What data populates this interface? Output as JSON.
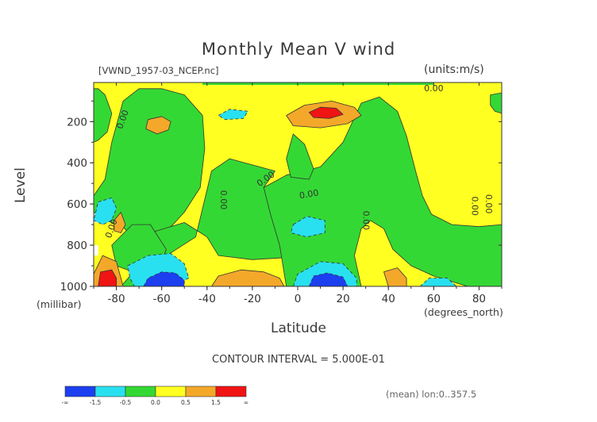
{
  "colors": {
    "blue": "#1c3ff0",
    "cyan": "#28e0f0",
    "green": "#34d834",
    "yellow": "#ffff22",
    "orange": "#f4a82a",
    "red": "#f01414",
    "line": "#333333"
  },
  "chart_data": {
    "type": "contour",
    "title": "Monthly Mean V wind",
    "file_label": "[VWND_1957-03_NCEP.nc]",
    "units_label": "(units:m/s)",
    "xlabel": "Latitude",
    "x_unit": "(degrees_north)",
    "ylabel": "Level",
    "y_unit": "(millibar)",
    "xlim": [
      -90,
      90
    ],
    "ylim": [
      1000,
      10
    ],
    "x_ticks": [
      -80,
      -60,
      -40,
      -20,
      0,
      20,
      40,
      60,
      80
    ],
    "y_ticks": [
      200,
      400,
      600,
      800,
      1000
    ],
    "contour_interval_label": "CONTOUR INTERVAL = 5.000E-01",
    "mean_note": "(mean) lon:0..357.5",
    "contour_label": "0.00",
    "colorbar": {
      "colors": [
        "#1c3ff0",
        "#28e0f0",
        "#34d834",
        "#ffff22",
        "#f4a82a",
        "#f01414"
      ],
      "tick_labels": [
        "-∞",
        "-1.5",
        "-0.5",
        "0.0",
        "0.5",
        "1.5",
        "∞"
      ]
    },
    "regions": [
      {
        "level": "green",
        "points": [
          [
            -90,
            560
          ],
          [
            -85,
            480
          ],
          [
            -82,
            300
          ],
          [
            -77,
            100
          ],
          [
            -70,
            40
          ],
          [
            -60,
            40
          ],
          [
            -50,
            70
          ],
          [
            -42,
            170
          ],
          [
            -41,
            330
          ],
          [
            -43,
            520
          ],
          [
            -50,
            640
          ],
          [
            -55,
            700
          ],
          [
            -62,
            770
          ],
          [
            -72,
            770
          ],
          [
            -78,
            700
          ],
          [
            -85,
            680
          ],
          [
            -90,
            640
          ]
        ]
      },
      {
        "level": "green",
        "points": [
          [
            -65,
            740
          ],
          [
            -50,
            690
          ],
          [
            -40,
            760
          ],
          [
            -35,
            850
          ],
          [
            -20,
            870
          ],
          [
            -5,
            860
          ],
          [
            -4,
            780
          ],
          [
            -3,
            600
          ],
          [
            -15,
            520
          ],
          [
            -10,
            440
          ],
          [
            -30,
            380
          ],
          [
            -38,
            440
          ],
          [
            -45,
            760
          ],
          [
            -62,
            880
          ],
          [
            -74,
            950
          ],
          [
            -78,
            1000
          ],
          [
            -60,
            1000
          ]
        ]
      },
      {
        "level": "green",
        "points": [
          [
            -5,
            1000
          ],
          [
            -8,
            800
          ],
          [
            -12,
            650
          ],
          [
            -15,
            520
          ],
          [
            -5,
            460
          ],
          [
            10,
            420
          ],
          [
            20,
            300
          ],
          [
            28,
            110
          ],
          [
            36,
            80
          ],
          [
            44,
            150
          ],
          [
            48,
            270
          ],
          [
            52,
            440
          ],
          [
            55,
            560
          ],
          [
            59,
            650
          ],
          [
            68,
            700
          ],
          [
            80,
            710
          ],
          [
            90,
            700
          ],
          [
            90,
            1000
          ],
          [
            75,
            1000
          ],
          [
            60,
            950
          ],
          [
            50,
            900
          ],
          [
            42,
            820
          ],
          [
            38,
            720
          ],
          [
            32,
            680
          ],
          [
            28,
            720
          ],
          [
            25,
            850
          ],
          [
            28,
            1000
          ]
        ]
      },
      {
        "level": "green",
        "points": [
          [
            -2,
            260
          ],
          [
            3,
            310
          ],
          [
            7,
            430
          ],
          [
            5,
            480
          ],
          [
            -3,
            470
          ],
          [
            -5,
            380
          ]
        ]
      },
      {
        "level": "green",
        "points": [
          [
            -90,
            40
          ],
          [
            -88,
            40
          ],
          [
            -85,
            70
          ],
          [
            -82,
            160
          ],
          [
            -84,
            250
          ],
          [
            -88,
            290
          ],
          [
            -90,
            300
          ]
        ]
      },
      {
        "level": "green",
        "points": [
          [
            85,
            70
          ],
          [
            90,
            60
          ],
          [
            90,
            160
          ],
          [
            87,
            150
          ],
          [
            85,
            120
          ]
        ]
      },
      {
        "level": "green",
        "points": [
          [
            -82,
            800
          ],
          [
            -73,
            700
          ],
          [
            -65,
            700
          ],
          [
            -58,
            820
          ],
          [
            -60,
            880
          ],
          [
            -68,
            900
          ],
          [
            -75,
            920
          ],
          [
            -80,
            900
          ]
        ]
      },
      {
        "level": "orange",
        "points": [
          [
            -66,
            190
          ],
          [
            -60,
            175
          ],
          [
            -56,
            200
          ],
          [
            -57,
            240
          ],
          [
            -62,
            260
          ],
          [
            -67,
            235
          ]
        ]
      },
      {
        "level": "orange",
        "points": [
          [
            -5,
            170
          ],
          [
            3,
            120
          ],
          [
            15,
            100
          ],
          [
            25,
            130
          ],
          [
            28,
            170
          ],
          [
            22,
            210
          ],
          [
            10,
            230
          ],
          [
            -2,
            220
          ]
        ]
      },
      {
        "level": "red",
        "points": [
          [
            5,
            155
          ],
          [
            10,
            130
          ],
          [
            17,
            135
          ],
          [
            20,
            165
          ],
          [
            14,
            185
          ],
          [
            7,
            180
          ]
        ]
      },
      {
        "level": "cyan",
        "points": [
          [
            -35,
            170
          ],
          [
            -30,
            140
          ],
          [
            -22,
            150
          ],
          [
            -24,
            185
          ],
          [
            -32,
            190
          ]
        ]
      },
      {
        "level": "cyan",
        "points": [
          [
            -2,
            700
          ],
          [
            4,
            660
          ],
          [
            12,
            680
          ],
          [
            12,
            740
          ],
          [
            4,
            760
          ],
          [
            -3,
            740
          ]
        ]
      },
      {
        "level": "cyan",
        "points": [
          [
            -88,
            590
          ],
          [
            -82,
            570
          ],
          [
            -80,
            620
          ],
          [
            -82,
            680
          ],
          [
            -86,
            700
          ],
          [
            -90,
            680
          ]
        ]
      },
      {
        "level": "cyan",
        "points": [
          [
            -75,
            900
          ],
          [
            -66,
            850
          ],
          [
            -56,
            840
          ],
          [
            -50,
            890
          ],
          [
            -48,
            960
          ],
          [
            -56,
            1000
          ],
          [
            -72,
            1000
          ],
          [
            -74,
            960
          ]
        ]
      },
      {
        "level": "blue",
        "points": [
          [
            -68,
            1000
          ],
          [
            -66,
            960
          ],
          [
            -60,
            930
          ],
          [
            -54,
            935
          ],
          [
            -50,
            970
          ],
          [
            -50,
            1000
          ]
        ]
      },
      {
        "level": "orange",
        "points": [
          [
            -38,
            1000
          ],
          [
            -35,
            950
          ],
          [
            -25,
            920
          ],
          [
            -15,
            930
          ],
          [
            -8,
            960
          ],
          [
            -6,
            1000
          ]
        ]
      },
      {
        "level": "cyan",
        "points": [
          [
            -2,
            1000
          ],
          [
            0,
            940
          ],
          [
            10,
            880
          ],
          [
            20,
            890
          ],
          [
            26,
            960
          ],
          [
            26,
            1000
          ]
        ]
      },
      {
        "level": "blue",
        "points": [
          [
            5,
            1000
          ],
          [
            7,
            950
          ],
          [
            13,
            935
          ],
          [
            20,
            955
          ],
          [
            22,
            1000
          ]
        ]
      },
      {
        "level": "orange",
        "points": [
          [
            40,
            1000
          ],
          [
            38,
            930
          ],
          [
            44,
            910
          ],
          [
            48,
            960
          ],
          [
            48,
            1000
          ]
        ]
      },
      {
        "level": "orange",
        "points": [
          [
            -90,
            940
          ],
          [
            -86,
            850
          ],
          [
            -80,
            880
          ],
          [
            -78,
            960
          ],
          [
            -77,
            1000
          ],
          [
            -90,
            1000
          ]
        ]
      },
      {
        "level": "red",
        "points": [
          [
            -88,
            1000
          ],
          [
            -87,
            930
          ],
          [
            -82,
            920
          ],
          [
            -80,
            960
          ],
          [
            -80,
            1000
          ]
        ]
      },
      {
        "level": "orange",
        "points": [
          [
            -81,
            680
          ],
          [
            -78,
            640
          ],
          [
            -76,
            700
          ],
          [
            -78,
            740
          ],
          [
            -81,
            730
          ]
        ]
      },
      {
        "level": "cyan",
        "points": [
          [
            54,
            1000
          ],
          [
            58,
            960
          ],
          [
            66,
            960
          ],
          [
            70,
            1000
          ]
        ]
      }
    ],
    "contour_lines": [
      {
        "text": "0.00",
        "x": -77,
        "y": 190,
        "rotate": -70
      },
      {
        "text": "0.00",
        "x": -82,
        "y": 720,
        "rotate": -70
      },
      {
        "text": "0.00",
        "x": -33,
        "y": 580,
        "rotate": 90
      },
      {
        "text": "0.00",
        "x": -14,
        "y": 480,
        "rotate": -35
      },
      {
        "text": "0.00",
        "x": 5,
        "y": 555,
        "rotate": -10
      },
      {
        "text": "0.00",
        "x": 60,
        "y": 40,
        "rotate": 0
      },
      {
        "text": "0.00",
        "x": 30,
        "y": 680,
        "rotate": 90
      },
      {
        "text": "0.00",
        "x": 78,
        "y": 610,
        "rotate": 90
      },
      {
        "text": "0.00",
        "x": 84,
        "y": 600,
        "rotate": 90
      }
    ]
  }
}
